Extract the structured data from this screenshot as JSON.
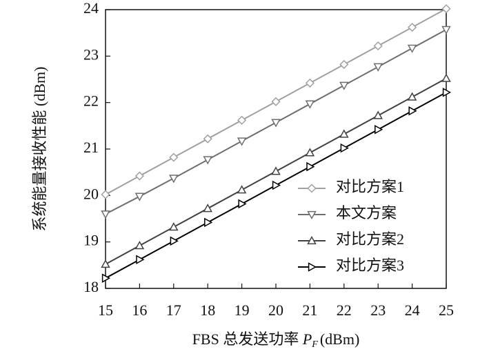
{
  "chart_data": {
    "type": "line",
    "y_label": "系统能量接收性能 (dBm)",
    "x_label": {
      "text": "FBS 总发送功率",
      "symbol": "P",
      "subscript": "F",
      "unit": "(dBm)"
    },
    "x": [
      15,
      16,
      17,
      18,
      19,
      20,
      21,
      22,
      23,
      24,
      25
    ],
    "xlim": [
      15,
      25
    ],
    "xticks": [
      15,
      16,
      17,
      18,
      19,
      20,
      21,
      22,
      23,
      24,
      25
    ],
    "ylim": [
      18,
      24
    ],
    "yticks": [
      18,
      19,
      20,
      21,
      22,
      23,
      24
    ],
    "legend_position": "lower right",
    "series": [
      {
        "name": "对比方案1",
        "color": "#a0a0a0",
        "marker": "diamond",
        "values": [
          20.02,
          20.42,
          20.82,
          21.22,
          21.62,
          22.02,
          22.42,
          22.82,
          23.22,
          23.62,
          24.02
        ]
      },
      {
        "name": "本文方案",
        "color": "#6e6e6e",
        "marker": "triangle-down",
        "values": [
          19.6,
          19.98,
          20.37,
          20.77,
          21.17,
          21.57,
          21.97,
          22.37,
          22.77,
          23.17,
          23.57
        ]
      },
      {
        "name": "对比方案2",
        "color": "#404040",
        "marker": "triangle-up",
        "values": [
          18.52,
          18.92,
          19.32,
          19.72,
          20.12,
          20.52,
          20.92,
          21.32,
          21.72,
          22.12,
          22.52
        ]
      },
      {
        "name": "对比方案3",
        "color": "#000000",
        "marker": "triangle-right",
        "values": [
          18.22,
          18.62,
          19.02,
          19.42,
          19.82,
          20.22,
          20.62,
          21.02,
          21.42,
          21.82,
          22.22
        ]
      }
    ]
  }
}
